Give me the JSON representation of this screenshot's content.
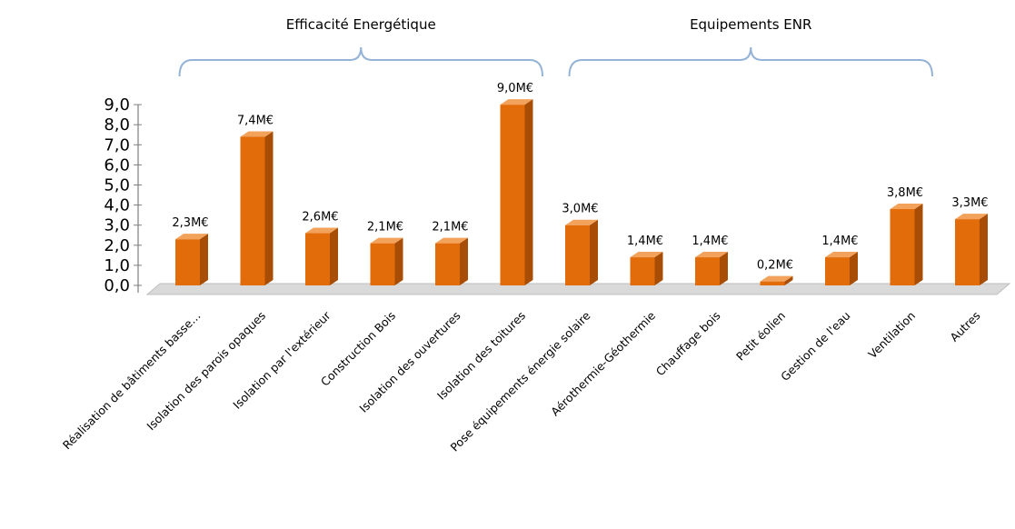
{
  "chart_data": {
    "type": "bar",
    "categories": [
      "Réalisation de bâtiments basse…",
      "Isolation des parois opaques",
      "Isolation par l'extérieur",
      "Construction Bois",
      "Isolation des ouvertures",
      "Isolation des toitures",
      "Pose équipements énergie solaire",
      "Aérothermie-Géothermie",
      "Chauffage bois",
      "Petit éolien",
      "Gestion de l'eau",
      "Ventilation",
      "Autres"
    ],
    "values": [
      2.3,
      7.4,
      2.6,
      2.1,
      2.1,
      9.0,
      3.0,
      1.4,
      1.4,
      0.2,
      1.4,
      3.8,
      3.3
    ],
    "data_labels": [
      "2,3M€",
      "7,4M€",
      "2,6M€",
      "2,1M€",
      "2,1M€",
      "9,0M€",
      "3,0M€",
      "1,4M€",
      "1,4M€",
      "0,2M€",
      "1,4M€",
      "3,8M€",
      "3,3M€"
    ],
    "ylim": [
      0,
      9
    ],
    "y_ticks": [
      "0,0",
      "1,0",
      "2,0",
      "3,0",
      "4,0",
      "5,0",
      "6,0",
      "7,0",
      "8,0",
      "9,0"
    ],
    "groups": [
      {
        "label": "Efficacité Energétique",
        "first_category": 0,
        "last_category": 5
      },
      {
        "label": "Equipements ENR",
        "first_category": 6,
        "last_category": 11
      }
    ],
    "grid": false,
    "legend": "none",
    "colors": {
      "bar_front": "#e36c0a",
      "bar_side": "#a84d05",
      "bar_top": "#f3a25c",
      "brace": "#95b3d7",
      "floor": "#d9d9d9"
    }
  }
}
